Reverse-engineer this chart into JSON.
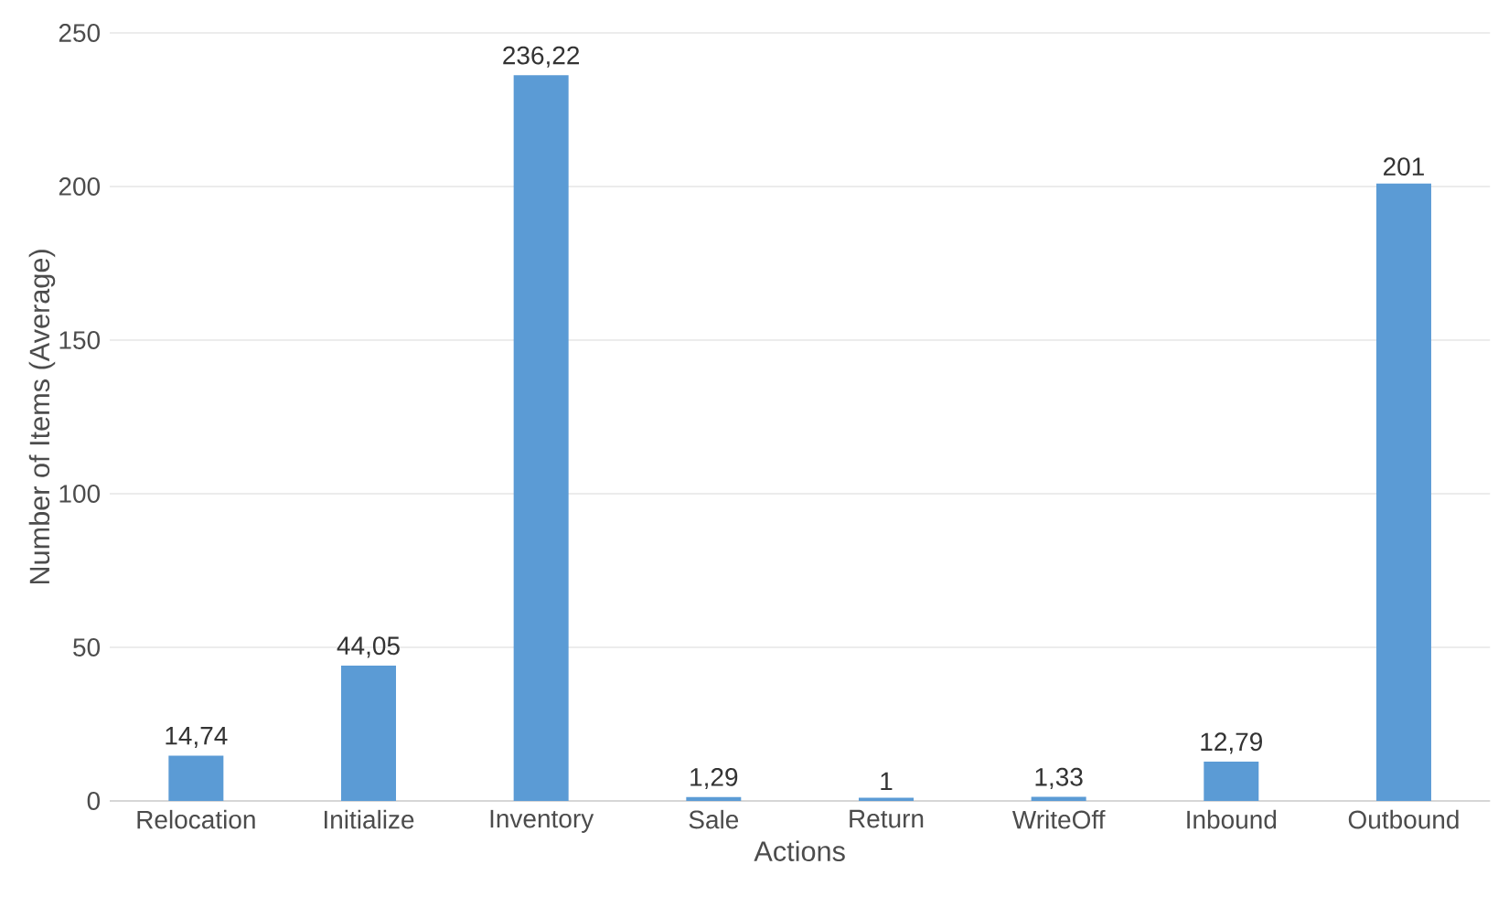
{
  "chart_data": {
    "type": "bar",
    "xlabel": "Actions",
    "ylabel": "Number of Items (Average)",
    "categories": [
      "Relocation",
      "Initialize",
      "Inventory",
      "Sale",
      "Return",
      "WriteOff",
      "Inbound",
      "Outbound"
    ],
    "values": [
      14.74,
      44.05,
      236.22,
      1.29,
      1,
      1.33,
      12.79,
      201
    ],
    "value_labels": [
      "14,74",
      "44,05",
      "236,22",
      "1,29",
      "1",
      "1,33",
      "12,79",
      "201"
    ],
    "color": "#5b9bd5",
    "ylim": [
      0,
      250
    ],
    "yticks": [
      0,
      50,
      100,
      150,
      200,
      250
    ],
    "grid": "y"
  }
}
